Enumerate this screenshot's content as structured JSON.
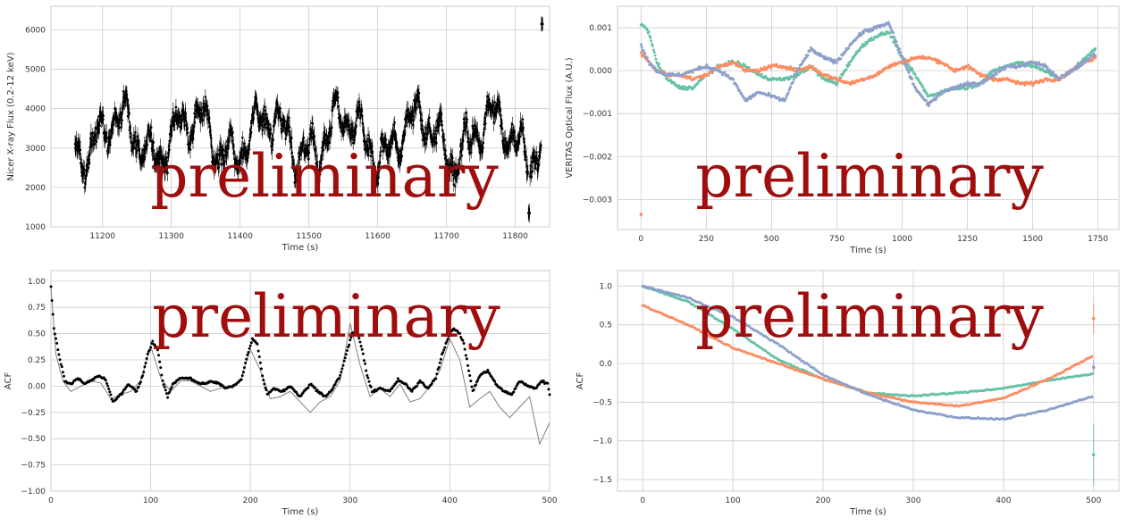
{
  "watermark": "preliminary",
  "colors": {
    "grid": "#cccccc",
    "axes_edge": "#cccccc",
    "nicer": "#000000",
    "acf_black": "#000000",
    "acf_gray": "#808080",
    "s1": "#66c2a5",
    "s2": "#fc8d62",
    "s3": "#8da0cb",
    "watermark": "#a00d0d"
  },
  "chart_data": [
    {
      "type": "scatter",
      "id": "nicer_lightcurve",
      "xlabel": "Time (s)",
      "ylabel": "Nicer X-ray Flux (0.2-12 keV)",
      "xlim": [
        11125,
        11850
      ],
      "ylim": [
        1000,
        6600
      ],
      "xticks": [
        11200,
        11300,
        11400,
        11500,
        11600,
        11700,
        11800
      ],
      "yticks": [
        1000,
        2000,
        3000,
        4000,
        5000,
        6000
      ],
      "grid": true,
      "errorbars": true,
      "x_range": [
        11160,
        11840
      ],
      "n_points": 1400,
      "mean_flux": 3300,
      "peak_x": 11840,
      "peak_y": 6150,
      "min_x": 11820,
      "min_y": 1350
    },
    {
      "type": "scatter",
      "id": "veritas_optical",
      "xlabel": "Time (s)",
      "ylabel": "VERITAS Optical Flux (A.U.)",
      "xlim": [
        -90,
        1830
      ],
      "ylim": [
        -0.0037,
        0.0015
      ],
      "xticks": [
        0,
        250,
        500,
        750,
        1000,
        1250,
        1500,
        1750
      ],
      "yticks": [
        -0.003,
        -0.002,
        -0.001,
        0.0,
        0.001
      ],
      "ytick_labels": [
        "−0.003",
        "−0.002",
        "−0.001",
        "0.000",
        "0.001"
      ],
      "grid": true,
      "series": [
        {
          "color": "#66c2a5",
          "x": [
            0,
            30,
            60,
            100,
            150,
            200,
            250,
            300,
            350,
            400,
            450,
            500,
            550,
            600,
            650,
            700,
            750,
            800,
            850,
            900,
            950,
            1000,
            1050,
            1100,
            1150,
            1200,
            1250,
            1300,
            1350,
            1400,
            1450,
            1500,
            1550,
            1600,
            1650,
            1700,
            1740
          ],
          "y": [
            0.0011,
            0.0009,
            0.0002,
            -0.0002,
            -0.0004,
            -0.0004,
            -0.0001,
            0.0001,
            0.0002,
            0.0001,
            -0.0001,
            -0.0002,
            -0.0002,
            -0.0001,
            0.0001,
            -0.0002,
            -0.0003,
            0.0002,
            0.0006,
            0.0008,
            0.0009,
            0.0003,
            -0.0001,
            -0.0006,
            -0.0005,
            -0.0004,
            -0.0004,
            -0.0003,
            0.0,
            0.0001,
            0.0002,
            0.0001,
            0.0,
            -0.0002,
            0.0,
            0.0003,
            0.0005
          ]
        },
        {
          "color": "#fc8d62",
          "x": [
            0,
            30,
            60,
            100,
            150,
            200,
            250,
            300,
            350,
            400,
            450,
            500,
            550,
            600,
            650,
            700,
            750,
            800,
            850,
            900,
            950,
            1000,
            1050,
            1100,
            1150,
            1200,
            1250,
            1300,
            1350,
            1400,
            1450,
            1500,
            1550,
            1600,
            1650,
            1700,
            1740
          ],
          "y": [
            0.0004,
            0.0002,
            0.0,
            -0.0001,
            -0.0001,
            -0.0002,
            -0.0001,
            0.0001,
            0.0002,
            0.0,
            0.0,
            0.0001,
            0.0001,
            0.0,
            0.0001,
            -0.0001,
            -0.0002,
            -0.0003,
            -0.0002,
            -0.0001,
            0.0001,
            0.0002,
            0.0003,
            0.0003,
            0.0002,
            0.0,
            0.0001,
            -0.0001,
            -0.0002,
            -0.0002,
            -0.0003,
            -0.0003,
            -0.0002,
            -0.0002,
            0.0,
            0.0002,
            0.0003
          ]
        },
        {
          "color": "#8da0cb",
          "x": [
            0,
            30,
            60,
            100,
            150,
            200,
            250,
            300,
            350,
            400,
            450,
            500,
            550,
            600,
            650,
            700,
            750,
            800,
            850,
            900,
            950,
            1000,
            1050,
            1100,
            1150,
            1200,
            1250,
            1300,
            1350,
            1400,
            1450,
            1500,
            1550,
            1600,
            1650,
            1700,
            1740
          ],
          "y": [
            0.0006,
            0.0002,
            0.0,
            -0.0001,
            -0.0001,
            0.0,
            0.0001,
            0.0,
            -0.0002,
            -0.0007,
            -0.0005,
            -0.0006,
            -0.0007,
            0.0,
            0.0005,
            0.0003,
            0.0002,
            0.0006,
            0.0009,
            0.001,
            0.0011,
            0.0003,
            -0.0004,
            -0.0008,
            -0.0005,
            -0.0004,
            -0.0003,
            -0.0003,
            -0.0001,
            0.0001,
            0.0001,
            0.0002,
            0.0001,
            -0.0002,
            0.0,
            0.0002,
            0.0004
          ]
        }
      ],
      "outlier": {
        "x": 0,
        "y": -0.00335,
        "color": "#fc8d62"
      }
    },
    {
      "type": "line",
      "id": "acf_xray",
      "xlabel": "Time (s)",
      "ylabel": "ACF",
      "xlim": [
        0,
        500
      ],
      "ylim": [
        -1.0,
        1.1
      ],
      "xticks": [
        0,
        100,
        200,
        300,
        400,
        500
      ],
      "yticks": [
        -1.0,
        -0.75,
        -0.5,
        -0.25,
        0.0,
        0.25,
        0.5,
        0.75,
        1.0
      ],
      "ytick_labels": [
        "−1.00",
        "−0.75",
        "−0.50",
        "−0.25",
        "0.00",
        "0.25",
        "0.50",
        "0.75",
        "1.00"
      ],
      "grid": true,
      "series": [
        {
          "style": "points",
          "color": "#000000",
          "x": [
            0,
            3,
            8,
            14,
            20,
            27,
            33,
            40,
            48,
            55,
            62,
            70,
            78,
            86,
            92,
            97,
            102,
            107,
            112,
            117,
            122,
            130,
            140,
            150,
            160,
            168,
            175,
            183,
            191,
            197,
            202,
            207,
            212,
            217,
            223,
            232,
            240,
            250,
            260,
            268,
            276,
            284,
            290,
            296,
            302,
            307,
            312,
            317,
            322,
            330,
            340,
            348,
            355,
            362,
            370,
            378,
            386,
            392,
            398,
            404,
            410,
            414,
            418,
            423,
            430,
            438,
            446,
            454,
            462,
            470,
            478,
            486,
            492,
            498,
            500
          ],
          "y": [
            0.95,
            0.55,
            0.3,
            0.05,
            0.02,
            0.08,
            0.02,
            0.05,
            0.1,
            0.06,
            -0.15,
            -0.08,
            0.02,
            -0.05,
            0.1,
            0.3,
            0.42,
            0.35,
            0.05,
            -0.1,
            0.02,
            0.08,
            0.07,
            0.02,
            0.04,
            0.03,
            -0.02,
            0.0,
            0.06,
            0.3,
            0.45,
            0.4,
            0.1,
            -0.08,
            -0.02,
            -0.05,
            0.0,
            -0.1,
            0.02,
            -0.05,
            -0.1,
            0.0,
            0.1,
            0.3,
            0.5,
            0.52,
            0.35,
            0.1,
            -0.05,
            -0.02,
            -0.05,
            0.06,
            0.02,
            -0.05,
            0.05,
            -0.02,
            0.08,
            0.3,
            0.45,
            0.55,
            0.5,
            0.4,
            0.2,
            -0.05,
            0.1,
            0.15,
            0.02,
            -0.05,
            -0.08,
            0.05,
            0.0,
            -0.02,
            0.05,
            0.02,
            -0.08
          ]
        },
        {
          "style": "line",
          "color": "#808080",
          "x": [
            0,
            5,
            12,
            20,
            30,
            40,
            50,
            60,
            70,
            80,
            90,
            100,
            110,
            120,
            130,
            140,
            150,
            160,
            170,
            180,
            190,
            200,
            210,
            220,
            230,
            240,
            250,
            260,
            270,
            280,
            290,
            300,
            310,
            320,
            330,
            340,
            350,
            360,
            370,
            380,
            390,
            400,
            410,
            420,
            430,
            440,
            450,
            460,
            470,
            480,
            490,
            500
          ],
          "y": [
            0.95,
            0.3,
            0.05,
            -0.05,
            0.0,
            0.05,
            0.03,
            -0.12,
            -0.08,
            -0.05,
            0.05,
            0.38,
            0.08,
            -0.05,
            0.05,
            0.05,
            0.0,
            -0.05,
            -0.02,
            0.0,
            0.05,
            0.35,
            0.15,
            -0.12,
            -0.1,
            -0.05,
            -0.15,
            -0.25,
            -0.15,
            -0.1,
            0.05,
            0.6,
            0.2,
            -0.1,
            -0.02,
            -0.1,
            0.02,
            -0.15,
            -0.12,
            0.0,
            0.15,
            0.45,
            0.25,
            -0.2,
            -0.12,
            -0.05,
            -0.2,
            -0.3,
            -0.2,
            -0.1,
            -0.55,
            -0.35
          ]
        }
      ]
    },
    {
      "type": "scatter",
      "id": "acf_optical",
      "xlabel": "Time (s)",
      "ylabel": "ACF",
      "xlim": [
        -28,
        528
      ],
      "ylim": [
        -1.65,
        1.2
      ],
      "xticks": [
        0,
        100,
        200,
        300,
        400,
        500
      ],
      "yticks": [
        -1.5,
        -1.0,
        -0.5,
        0.0,
        0.5,
        1.0
      ],
      "ytick_labels": [
        "−1.5",
        "−1.0",
        "−0.5",
        "0.0",
        "0.5",
        "1.0"
      ],
      "grid": true,
      "series": [
        {
          "color": "#66c2a5",
          "x": [
            0,
            50,
            100,
            150,
            200,
            250,
            300,
            350,
            400,
            450,
            500
          ],
          "y": [
            1.0,
            0.8,
            0.45,
            0.05,
            -0.2,
            -0.38,
            -0.42,
            -0.38,
            -0.32,
            -0.22,
            -0.13
          ]
        },
        {
          "color": "#fc8d62",
          "x": [
            0,
            50,
            100,
            150,
            200,
            250,
            300,
            350,
            400,
            450,
            500
          ],
          "y": [
            0.75,
            0.5,
            0.2,
            0.0,
            -0.2,
            -0.38,
            -0.5,
            -0.55,
            -0.45,
            -0.2,
            0.1
          ]
        },
        {
          "color": "#8da0cb",
          "x": [
            0,
            50,
            100,
            150,
            200,
            250,
            300,
            350,
            400,
            450,
            500
          ],
          "y": [
            1.0,
            0.85,
            0.6,
            0.25,
            -0.15,
            -0.4,
            -0.6,
            -0.7,
            -0.72,
            -0.6,
            -0.42
          ]
        }
      ],
      "endpoints": [
        {
          "x": 500,
          "y": 0.58,
          "err": 0.2,
          "color": "#fc8d62"
        },
        {
          "x": 500,
          "y": -0.05,
          "err": 0.1,
          "color": "#8da0cb"
        },
        {
          "x": 500,
          "y": -1.18,
          "err": 0.4,
          "color": "#66c2a5"
        }
      ]
    }
  ]
}
